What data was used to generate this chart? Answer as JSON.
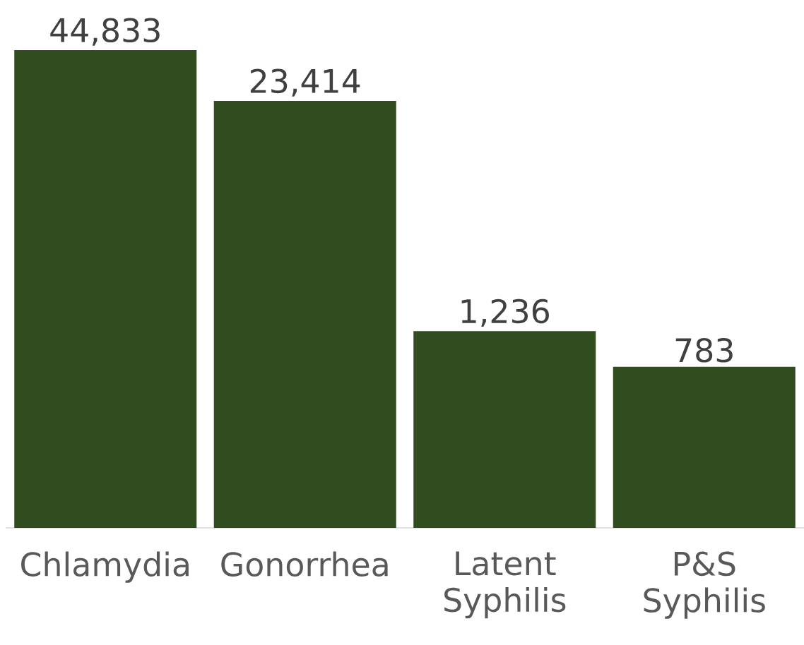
{
  "chart_data": {
    "type": "bar",
    "categories": [
      "Chlamydia",
      "Gonorrhea",
      "Latent Syphilis",
      "P&S Syphilis"
    ],
    "values": [
      44833,
      23414,
      1236,
      783
    ],
    "value_labels": [
      "44,833",
      "23,414",
      "1,236",
      "783"
    ],
    "color": "#314d1f",
    "log": true,
    "ylim": [
      100,
      44833
    ]
  }
}
